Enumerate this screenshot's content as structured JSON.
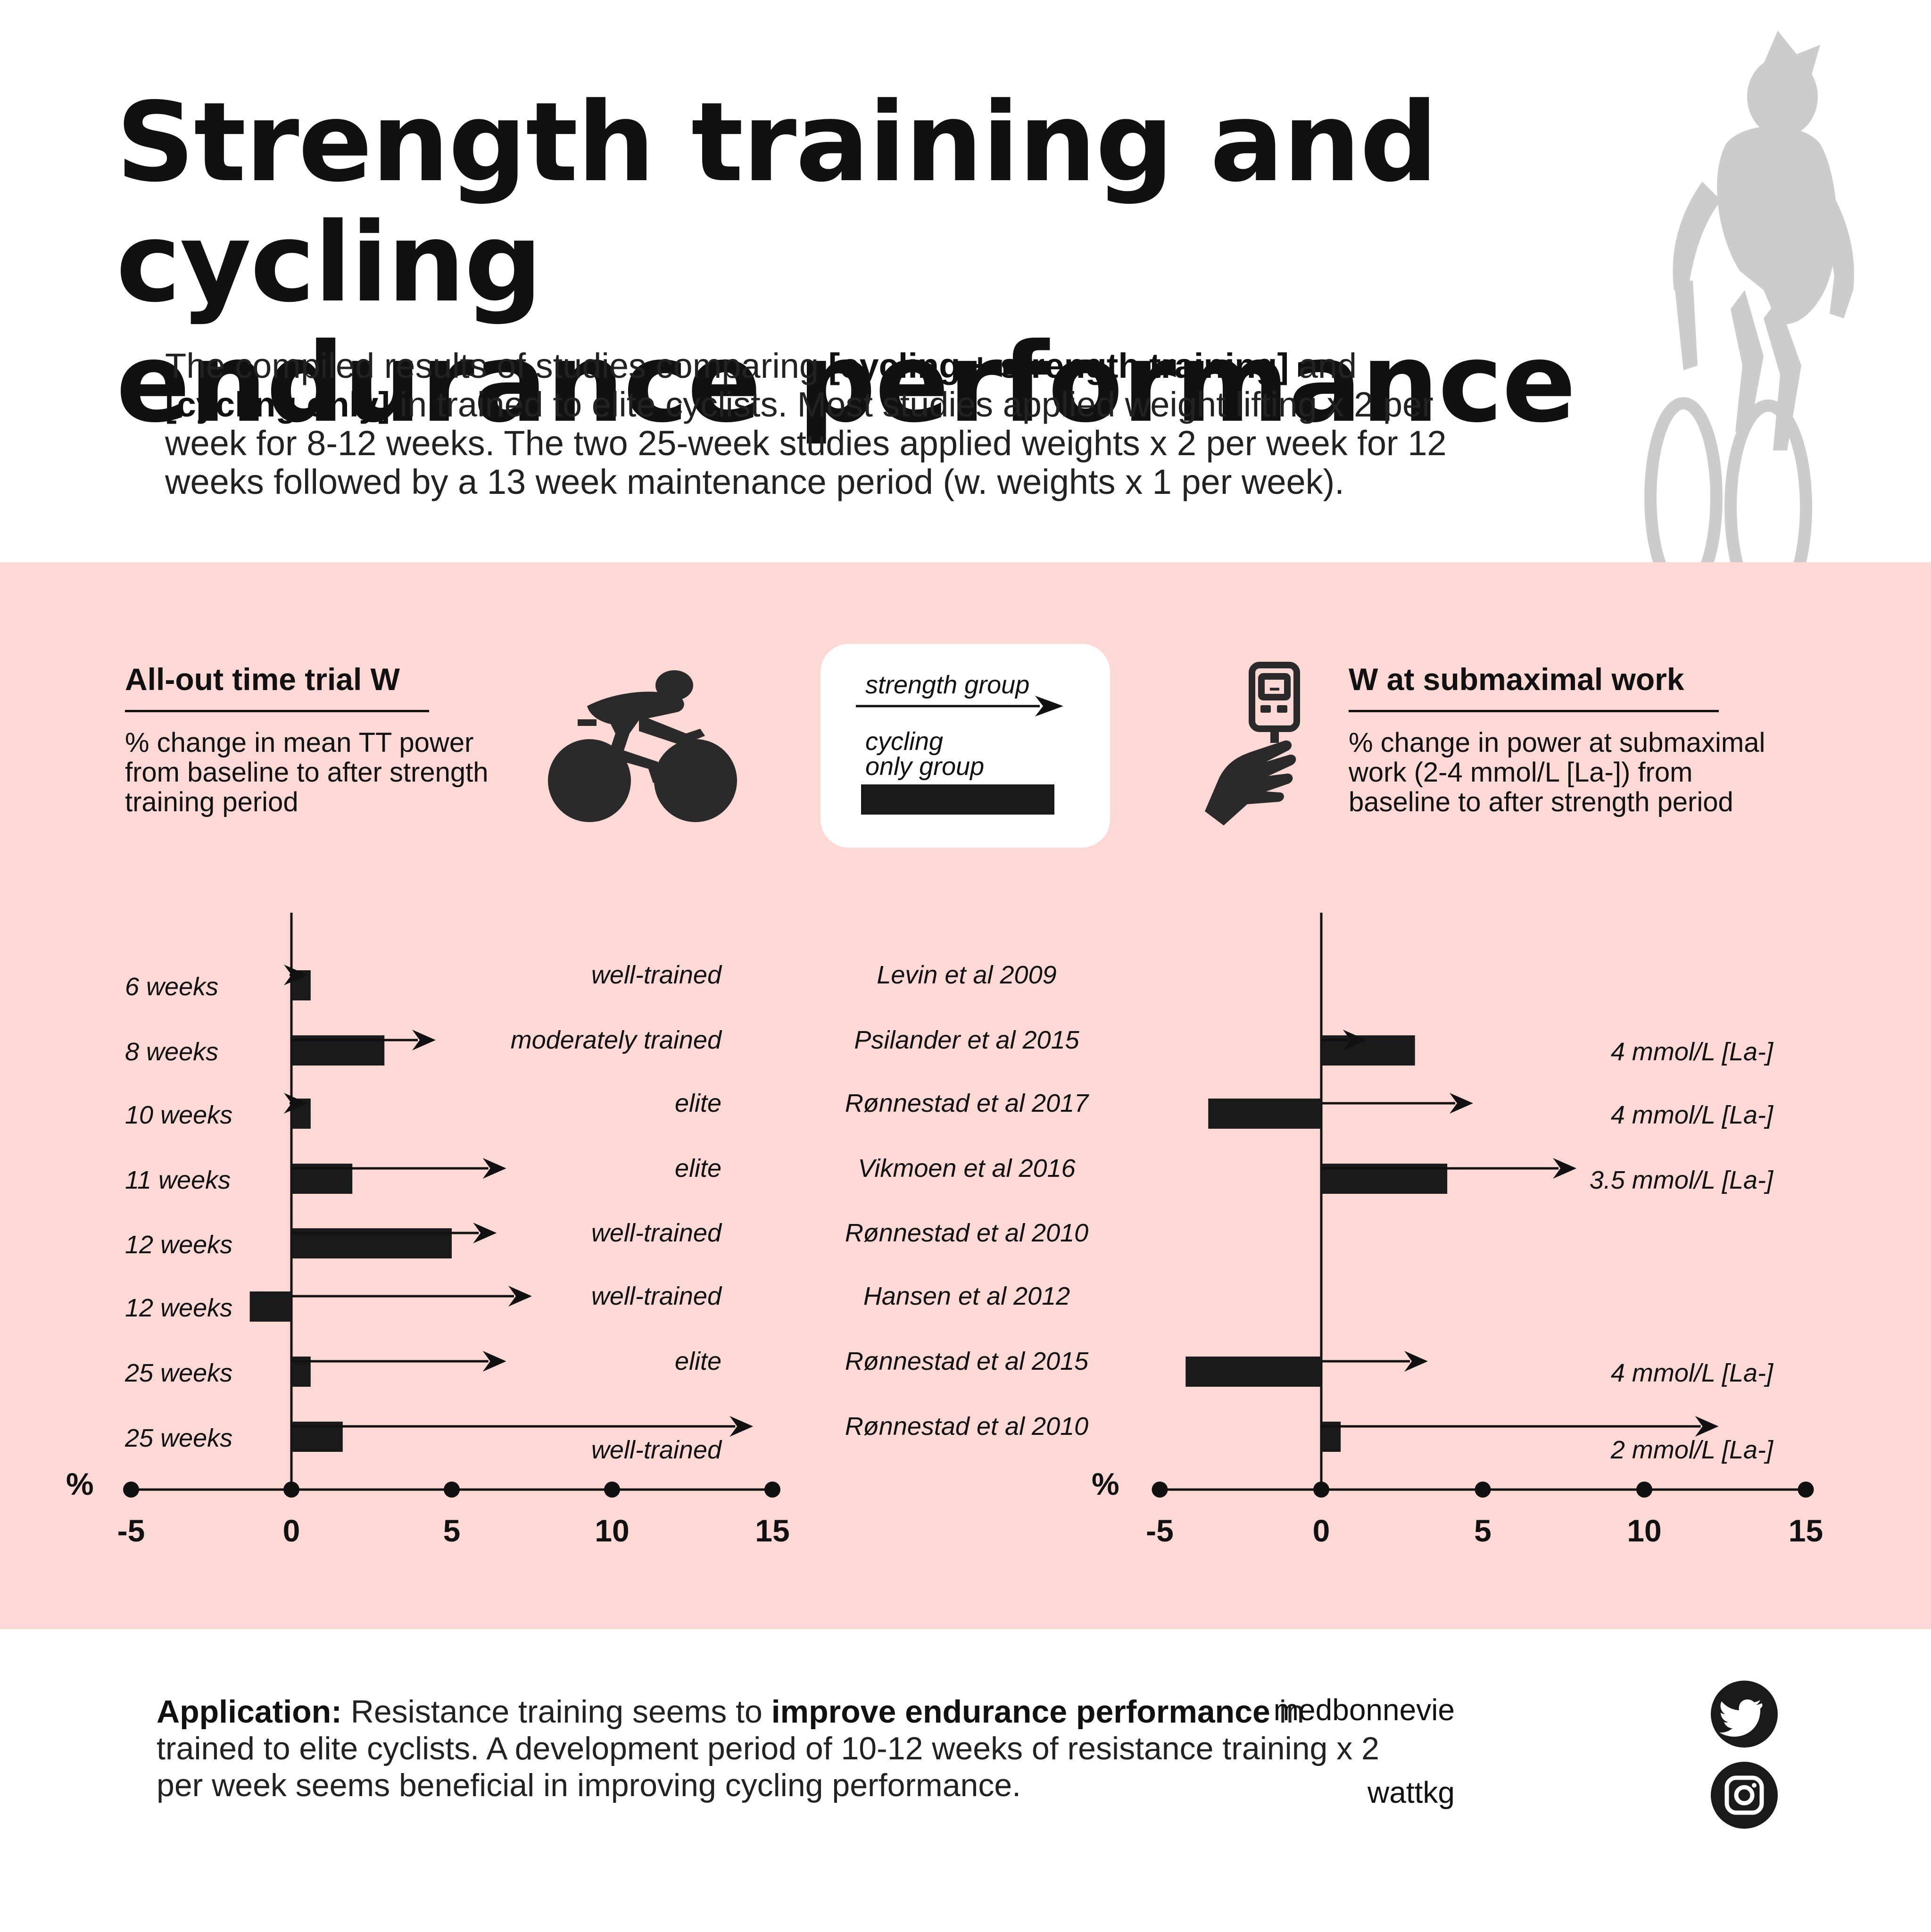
{
  "header": {
    "title_line1": "Strength training and cycling",
    "title_line2": "endurance performance",
    "intro_p1": "The compiled results of studies comparing ",
    "intro_b1": "[cycling + strength training]",
    "intro_p2": " and ",
    "intro_b2": "[cycling only]",
    "intro_p3": " in trained to elite cyclists. Most studies applied weight lifting x 2 per week for 8-12 weeks. The two 25-week studies applied weights x 2 per week for 12 weeks followed by a 13 week maintenance period (w. weights x 1 per week)."
  },
  "left_section": {
    "title": "All-out time trial W",
    "desc": "% change in mean TT power from baseline to after strength training period",
    "icon": "cyclist-icon"
  },
  "right_section": {
    "title": "W at submaximal work",
    "desc": "% change in power at submaximal work (2-4 mmol/L [La-]) from baseline to after strength period",
    "icon": "lactate-meter-hand-icon"
  },
  "legend": {
    "strength_label": "strength group",
    "cycling_label_1": "cycling",
    "cycling_label_2": "only group"
  },
  "footer": {
    "app_b1": "Application:",
    "app_p1": " Resistance training seems to ",
    "app_b2": "improve endurance performance",
    "app_p2": " in trained to elite cyclists. A development period of 10-12 weeks of resistance training x 2 per week seems beneficial in improving cycling performance.",
    "twitter_handle": "medbonnevie",
    "instagram_handle": "wattkg"
  },
  "colors": {
    "panel_background": "#fcd9d4",
    "bar": "#1a1a1a",
    "silhouette": "#cccccc"
  },
  "chart_data": [
    {
      "type": "bar",
      "title": "All-out time trial W",
      "xlabel": "%",
      "xlim": [
        -5,
        15
      ],
      "xticks": [
        "-5",
        "0",
        "5",
        "10",
        "15"
      ],
      "orientation": "horizontal",
      "categories": [
        "6 weeks",
        "8 weeks",
        "10 weeks",
        "11 weeks",
        "12 weeks",
        "12 weeks",
        "25 weeks",
        "25 weeks"
      ],
      "levels": [
        "well-trained",
        "moderately trained",
        "elite",
        "elite",
        "well-trained",
        "well-trained",
        "elite",
        "well-trained"
      ],
      "studies": [
        "Levin et al 2009",
        "Psilander et al 2015",
        "Rønnestad et al 2017",
        "Vikmoen et al 2016",
        "Rønnestad et al 2010",
        "Hansen et al 2012",
        "Rønnestad et al 2015",
        "Rønnestad et al 2010"
      ],
      "series": [
        {
          "name": "strength group",
          "mark": "arrow",
          "values": [
            0.5,
            4.5,
            0.5,
            6.7,
            6.4,
            7.5,
            6.7,
            14.4
          ]
        },
        {
          "name": "cycling only group",
          "mark": "bar",
          "values": [
            0.6,
            2.9,
            0.6,
            1.9,
            5.0,
            -1.3,
            0.6,
            1.6
          ]
        }
      ]
    },
    {
      "type": "bar",
      "title": "W at submaximal work",
      "xlabel": "%",
      "xlim": [
        -5,
        15
      ],
      "xticks": [
        "-5",
        "0",
        "5",
        "10",
        "15"
      ],
      "orientation": "horizontal",
      "rows": [
        1,
        2,
        3,
        6,
        7
      ],
      "annotations": [
        "4 mmol/L [La-]",
        "4 mmol/L [La-]",
        "3.5 mmol/L [La-]",
        "4 mmol/L [La-]",
        "2 mmol/L [La-]"
      ],
      "series": [
        {
          "name": "strength group",
          "mark": "arrow",
          "values": [
            1.4,
            4.7,
            7.9,
            3.3,
            12.3
          ]
        },
        {
          "name": "cycling only group",
          "mark": "bar",
          "values": [
            2.9,
            -3.5,
            3.9,
            -4.2,
            0.6
          ]
        }
      ]
    }
  ]
}
